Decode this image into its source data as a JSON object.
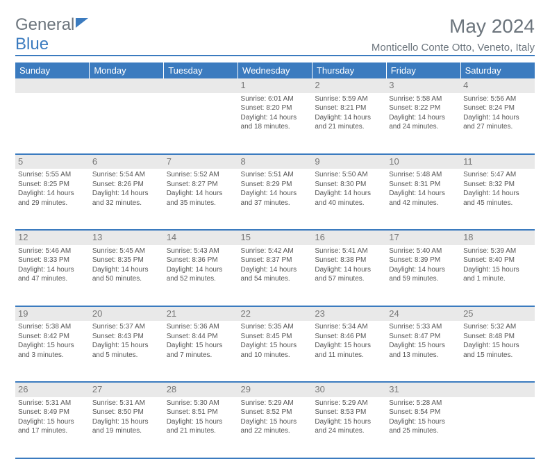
{
  "brand": {
    "part1": "General",
    "part2": "Blue"
  },
  "header": {
    "title": "May 2024",
    "location": "Monticello Conte Otto, Veneto, Italy"
  },
  "colors": {
    "accent": "#3b7bbf",
    "text_muted": "#6c757d",
    "cell_text": "#555555",
    "shade_bg": "#e9e9e9",
    "white": "#ffffff"
  },
  "weekdays": [
    "Sunday",
    "Monday",
    "Tuesday",
    "Wednesday",
    "Thursday",
    "Friday",
    "Saturday"
  ],
  "weeks": [
    [
      {
        "day": "",
        "lines": []
      },
      {
        "day": "",
        "lines": []
      },
      {
        "day": "",
        "lines": []
      },
      {
        "day": "1",
        "lines": [
          "Sunrise: 6:01 AM",
          "Sunset: 8:20 PM",
          "Daylight: 14 hours",
          "and 18 minutes."
        ]
      },
      {
        "day": "2",
        "lines": [
          "Sunrise: 5:59 AM",
          "Sunset: 8:21 PM",
          "Daylight: 14 hours",
          "and 21 minutes."
        ]
      },
      {
        "day": "3",
        "lines": [
          "Sunrise: 5:58 AM",
          "Sunset: 8:22 PM",
          "Daylight: 14 hours",
          "and 24 minutes."
        ]
      },
      {
        "day": "4",
        "lines": [
          "Sunrise: 5:56 AM",
          "Sunset: 8:24 PM",
          "Daylight: 14 hours",
          "and 27 minutes."
        ]
      }
    ],
    [
      {
        "day": "5",
        "lines": [
          "Sunrise: 5:55 AM",
          "Sunset: 8:25 PM",
          "Daylight: 14 hours",
          "and 29 minutes."
        ]
      },
      {
        "day": "6",
        "lines": [
          "Sunrise: 5:54 AM",
          "Sunset: 8:26 PM",
          "Daylight: 14 hours",
          "and 32 minutes."
        ]
      },
      {
        "day": "7",
        "lines": [
          "Sunrise: 5:52 AM",
          "Sunset: 8:27 PM",
          "Daylight: 14 hours",
          "and 35 minutes."
        ]
      },
      {
        "day": "8",
        "lines": [
          "Sunrise: 5:51 AM",
          "Sunset: 8:29 PM",
          "Daylight: 14 hours",
          "and 37 minutes."
        ]
      },
      {
        "day": "9",
        "lines": [
          "Sunrise: 5:50 AM",
          "Sunset: 8:30 PM",
          "Daylight: 14 hours",
          "and 40 minutes."
        ]
      },
      {
        "day": "10",
        "lines": [
          "Sunrise: 5:48 AM",
          "Sunset: 8:31 PM",
          "Daylight: 14 hours",
          "and 42 minutes."
        ]
      },
      {
        "day": "11",
        "lines": [
          "Sunrise: 5:47 AM",
          "Sunset: 8:32 PM",
          "Daylight: 14 hours",
          "and 45 minutes."
        ]
      }
    ],
    [
      {
        "day": "12",
        "lines": [
          "Sunrise: 5:46 AM",
          "Sunset: 8:33 PM",
          "Daylight: 14 hours",
          "and 47 minutes."
        ]
      },
      {
        "day": "13",
        "lines": [
          "Sunrise: 5:45 AM",
          "Sunset: 8:35 PM",
          "Daylight: 14 hours",
          "and 50 minutes."
        ]
      },
      {
        "day": "14",
        "lines": [
          "Sunrise: 5:43 AM",
          "Sunset: 8:36 PM",
          "Daylight: 14 hours",
          "and 52 minutes."
        ]
      },
      {
        "day": "15",
        "lines": [
          "Sunrise: 5:42 AM",
          "Sunset: 8:37 PM",
          "Daylight: 14 hours",
          "and 54 minutes."
        ]
      },
      {
        "day": "16",
        "lines": [
          "Sunrise: 5:41 AM",
          "Sunset: 8:38 PM",
          "Daylight: 14 hours",
          "and 57 minutes."
        ]
      },
      {
        "day": "17",
        "lines": [
          "Sunrise: 5:40 AM",
          "Sunset: 8:39 PM",
          "Daylight: 14 hours",
          "and 59 minutes."
        ]
      },
      {
        "day": "18",
        "lines": [
          "Sunrise: 5:39 AM",
          "Sunset: 8:40 PM",
          "Daylight: 15 hours",
          "and 1 minute."
        ]
      }
    ],
    [
      {
        "day": "19",
        "lines": [
          "Sunrise: 5:38 AM",
          "Sunset: 8:42 PM",
          "Daylight: 15 hours",
          "and 3 minutes."
        ]
      },
      {
        "day": "20",
        "lines": [
          "Sunrise: 5:37 AM",
          "Sunset: 8:43 PM",
          "Daylight: 15 hours",
          "and 5 minutes."
        ]
      },
      {
        "day": "21",
        "lines": [
          "Sunrise: 5:36 AM",
          "Sunset: 8:44 PM",
          "Daylight: 15 hours",
          "and 7 minutes."
        ]
      },
      {
        "day": "22",
        "lines": [
          "Sunrise: 5:35 AM",
          "Sunset: 8:45 PM",
          "Daylight: 15 hours",
          "and 10 minutes."
        ]
      },
      {
        "day": "23",
        "lines": [
          "Sunrise: 5:34 AM",
          "Sunset: 8:46 PM",
          "Daylight: 15 hours",
          "and 11 minutes."
        ]
      },
      {
        "day": "24",
        "lines": [
          "Sunrise: 5:33 AM",
          "Sunset: 8:47 PM",
          "Daylight: 15 hours",
          "and 13 minutes."
        ]
      },
      {
        "day": "25",
        "lines": [
          "Sunrise: 5:32 AM",
          "Sunset: 8:48 PM",
          "Daylight: 15 hours",
          "and 15 minutes."
        ]
      }
    ],
    [
      {
        "day": "26",
        "lines": [
          "Sunrise: 5:31 AM",
          "Sunset: 8:49 PM",
          "Daylight: 15 hours",
          "and 17 minutes."
        ]
      },
      {
        "day": "27",
        "lines": [
          "Sunrise: 5:31 AM",
          "Sunset: 8:50 PM",
          "Daylight: 15 hours",
          "and 19 minutes."
        ]
      },
      {
        "day": "28",
        "lines": [
          "Sunrise: 5:30 AM",
          "Sunset: 8:51 PM",
          "Daylight: 15 hours",
          "and 21 minutes."
        ]
      },
      {
        "day": "29",
        "lines": [
          "Sunrise: 5:29 AM",
          "Sunset: 8:52 PM",
          "Daylight: 15 hours",
          "and 22 minutes."
        ]
      },
      {
        "day": "30",
        "lines": [
          "Sunrise: 5:29 AM",
          "Sunset: 8:53 PM",
          "Daylight: 15 hours",
          "and 24 minutes."
        ]
      },
      {
        "day": "31",
        "lines": [
          "Sunrise: 5:28 AM",
          "Sunset: 8:54 PM",
          "Daylight: 15 hours",
          "and 25 minutes."
        ]
      },
      {
        "day": "",
        "lines": []
      }
    ]
  ]
}
